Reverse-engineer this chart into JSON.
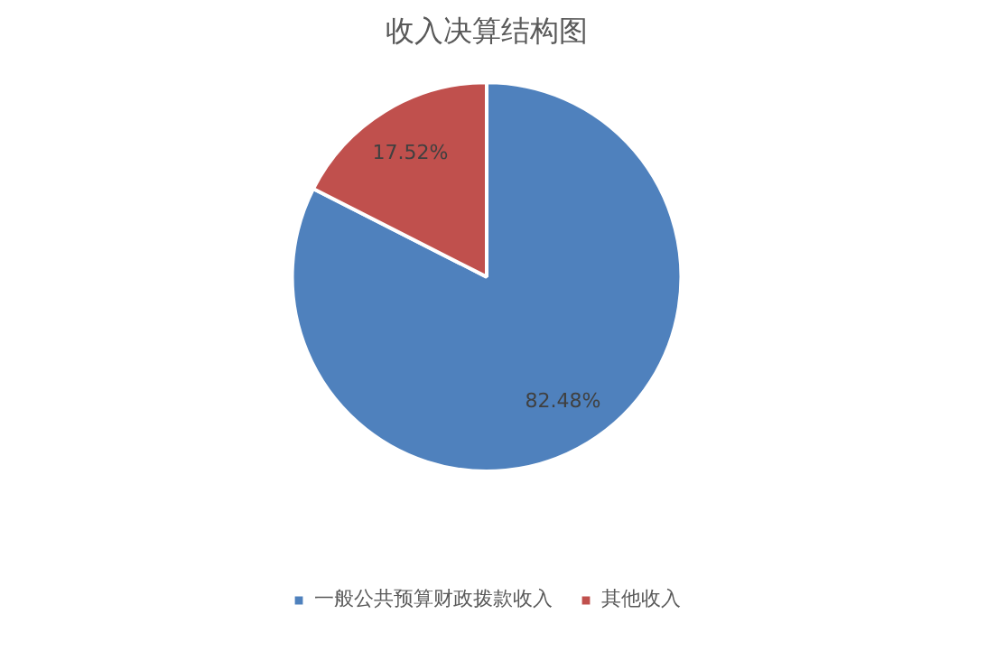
{
  "chart_data": {
    "type": "pie",
    "title": "收入决算结构图",
    "categories": [
      "一般公共预算财政拨款收入",
      "其他收入"
    ],
    "values": [
      82.48,
      17.52
    ],
    "colors": [
      "#4f81bd",
      "#c0504d"
    ],
    "value_labels": [
      "82.48%",
      "17.52%"
    ],
    "legend": "bottom"
  }
}
